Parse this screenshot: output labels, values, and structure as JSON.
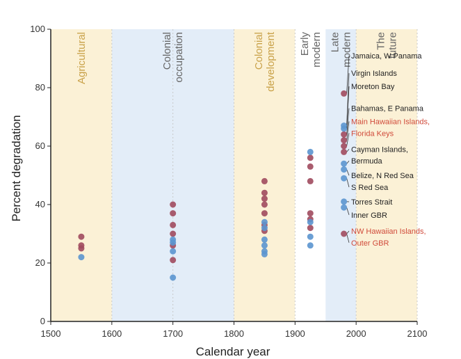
{
  "chart_data": {
    "type": "scatter",
    "title": "",
    "xlabel": "Calendar year",
    "ylabel": "Percent degradation",
    "xlim": [
      1500,
      2100
    ],
    "ylim": [
      0,
      100
    ],
    "xticks": [
      "1500",
      "1600",
      "1700",
      "1800",
      "1900",
      "2000",
      "2100"
    ],
    "yticks": [
      "0",
      "20",
      "40",
      "60",
      "80",
      "100"
    ],
    "periods": [
      {
        "label": "Agricultural",
        "start": 1500,
        "end": 1600,
        "fill": "#fbf1d6",
        "text_color": "#c9a24a"
      },
      {
        "label": "Colonial occupation",
        "start": 1600,
        "end": 1800,
        "fill": "#e3edf8",
        "text_color": "#666666"
      },
      {
        "label": "Colonial development",
        "start": 1800,
        "end": 1900,
        "fill": "#fbf1d6",
        "text_color": "#c9a24a"
      },
      {
        "label": "Early modern",
        "start": 1900,
        "end": 1950,
        "fill": "#ffffff",
        "text_color": "#666666"
      },
      {
        "label": "Late modern",
        "start": 1950,
        "end": 2000,
        "fill": "#e3edf8",
        "text_color": "#666666"
      },
      {
        "label": "The future",
        "start": 2000,
        "end": 2100,
        "fill": "#fbf1d6",
        "text_color": "#666666"
      }
    ],
    "series": [
      {
        "color": "#a04a5e",
        "points": [
          [
            1550,
            29
          ],
          [
            1550,
            26
          ],
          [
            1550,
            25
          ],
          [
            1700,
            40
          ],
          [
            1700,
            37
          ],
          [
            1700,
            33
          ],
          [
            1700,
            30
          ],
          [
            1700,
            26
          ],
          [
            1700,
            21
          ],
          [
            1850,
            48
          ],
          [
            1850,
            44
          ],
          [
            1850,
            42
          ],
          [
            1850,
            40
          ],
          [
            1850,
            37
          ],
          [
            1850,
            33
          ],
          [
            1850,
            31
          ],
          [
            1925,
            56
          ],
          [
            1925,
            53
          ],
          [
            1925,
            48
          ],
          [
            1925,
            37
          ],
          [
            1925,
            35
          ],
          [
            1925,
            32
          ],
          [
            1980,
            78
          ],
          [
            1980,
            64
          ],
          [
            1980,
            62
          ],
          [
            1980,
            60
          ],
          [
            1980,
            58
          ],
          [
            1980,
            30
          ]
        ]
      },
      {
        "color": "#5b95cf",
        "points": [
          [
            1550,
            22
          ],
          [
            1700,
            28
          ],
          [
            1700,
            27
          ],
          [
            1700,
            24
          ],
          [
            1700,
            15
          ],
          [
            1850,
            34
          ],
          [
            1850,
            32
          ],
          [
            1850,
            28
          ],
          [
            1850,
            26
          ],
          [
            1850,
            24
          ],
          [
            1850,
            23
          ],
          [
            1925,
            58
          ],
          [
            1925,
            34
          ],
          [
            1925,
            29
          ],
          [
            1925,
            26
          ],
          [
            1980,
            67
          ],
          [
            1980,
            66
          ],
          [
            1980,
            54
          ],
          [
            1980,
            52
          ],
          [
            1980,
            49
          ],
          [
            1980,
            41
          ],
          [
            1980,
            39
          ]
        ]
      }
    ],
    "annotations": [
      {
        "text": "Jamaica, W Panama",
        "y": 90,
        "point_y": 78,
        "color": "#222222"
      },
      {
        "text": "Virgin Islands",
        "y": 84,
        "point_y": 67,
        "color": "#222222"
      },
      {
        "text": "Moreton Bay",
        "y": 79.5,
        "point_y": 66,
        "color": "#222222"
      },
      {
        "text": "Bahamas, E Panama",
        "y": 72,
        "point_y": 64,
        "color": "#222222"
      },
      {
        "text": "Main Hawaiian Islands,",
        "y": 67.5,
        "point_y": 62,
        "color": "#d04a3a"
      },
      {
        "text": "Florida Keys",
        "y": 63.5,
        "point_y": 60,
        "color": "#d04a3a"
      },
      {
        "text": "Cayman Islands,",
        "y": 58,
        "point_y": 58,
        "color": "#222222"
      },
      {
        "text": "Bermuda",
        "y": 54,
        "point_y": 54,
        "color": "#222222"
      },
      {
        "text": "Belize, N Red Sea",
        "y": 49,
        "point_y": 52,
        "color": "#222222"
      },
      {
        "text": "S Red Sea",
        "y": 45,
        "point_y": 49,
        "color": "#222222"
      },
      {
        "text": "Torres Strait",
        "y": 40,
        "point_y": 41,
        "color": "#222222"
      },
      {
        "text": "Inner GBR",
        "y": 35.5,
        "point_y": 39,
        "color": "#222222"
      },
      {
        "text": "NW Hawaiian Islands,",
        "y": 30,
        "point_y": 30,
        "color": "#d04a3a"
      },
      {
        "text": "Outer GBR",
        "y": 26,
        "point_y": 30,
        "color": "#d04a3a"
      }
    ]
  }
}
